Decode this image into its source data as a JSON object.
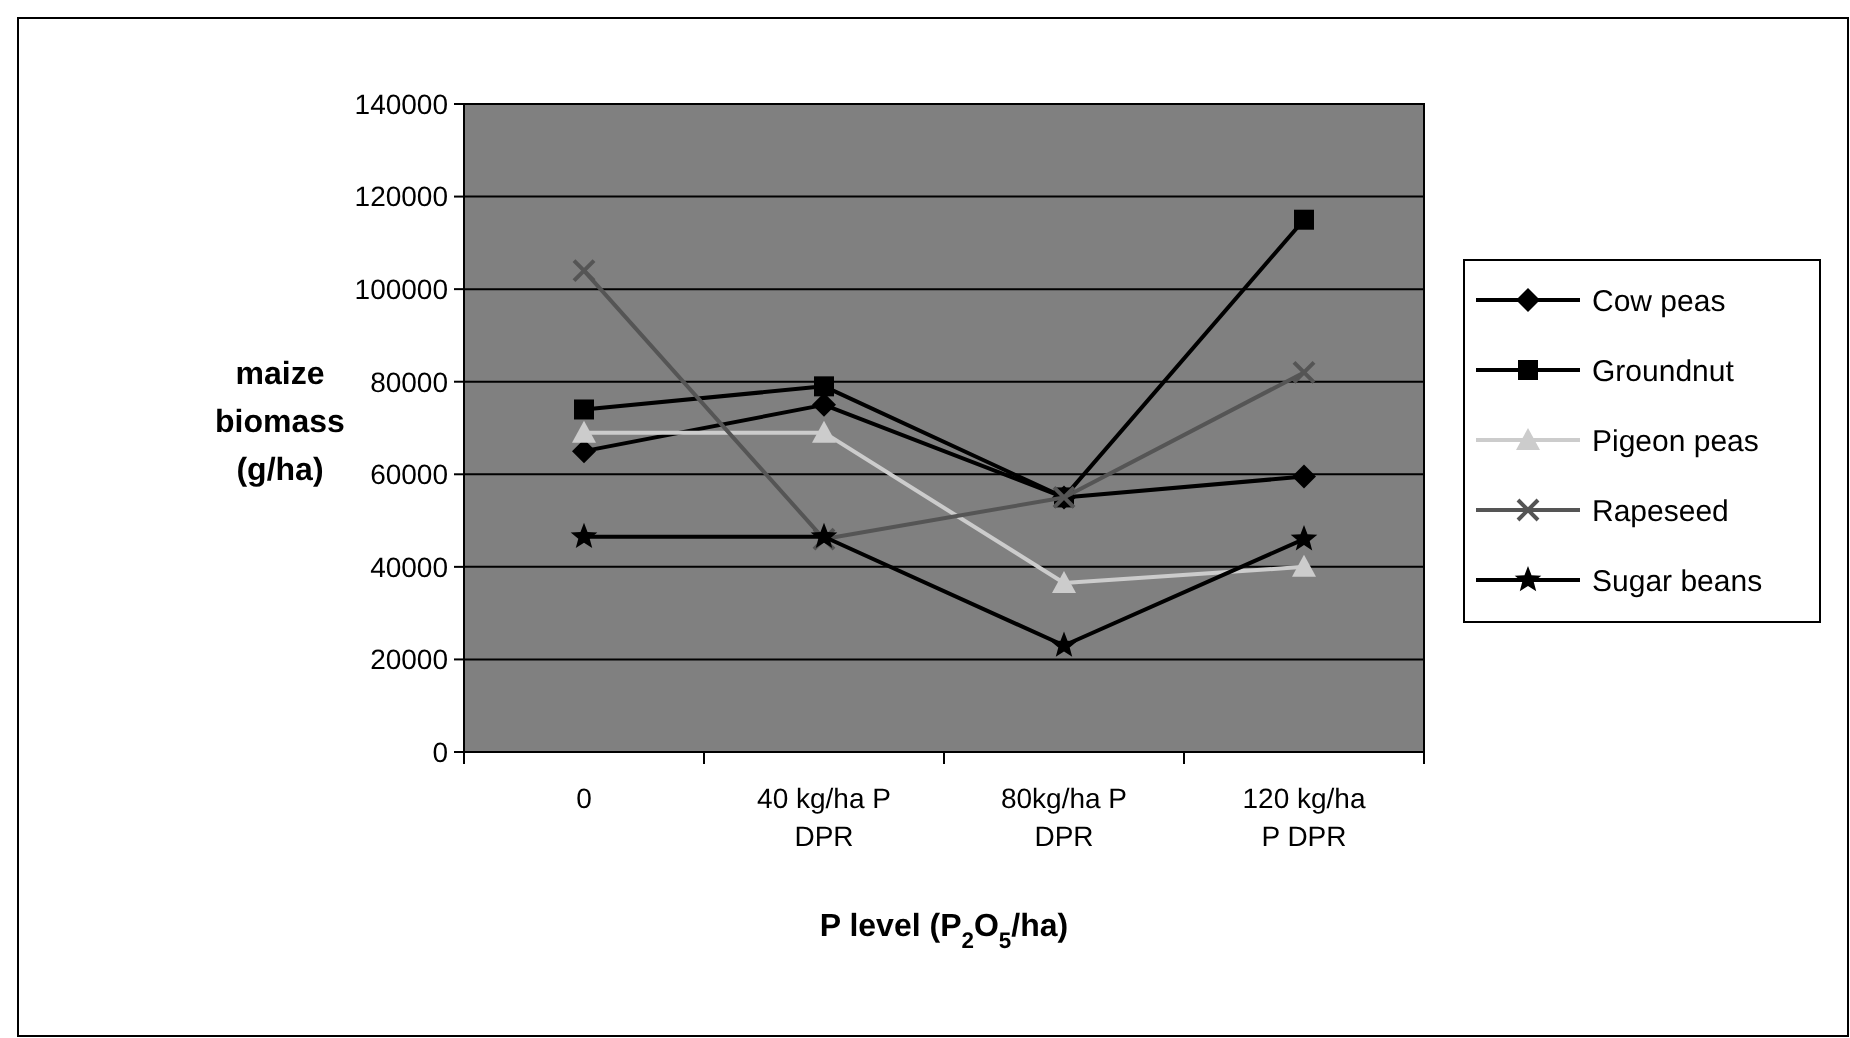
{
  "chart_data": {
    "type": "line",
    "xlabel": "P level (P$_{2}$O$_{5}$/ha)",
    "ylabel": "maize biomass (g/ha)",
    "categories": [
      "0",
      "40 kg/ha P DPR",
      "80kg/ha P DPR",
      "120 kg/ha P DPR"
    ],
    "ylim": [
      0,
      140000
    ],
    "yticks": [
      0,
      20000,
      40000,
      60000,
      80000,
      100000,
      120000,
      140000
    ],
    "grid": "y",
    "legend": "right",
    "series": [
      {
        "name": "Cow peas",
        "color": "#000000",
        "marker": "diamond",
        "values": [
          65000,
          75000,
          55000,
          59500
        ]
      },
      {
        "name": "Groundnut",
        "color": "#000000",
        "marker": "square",
        "values": [
          74000,
          79000,
          55000,
          115000
        ]
      },
      {
        "name": "Pigeon peas",
        "color": "#cccccc",
        "marker": "triangle",
        "values": [
          69000,
          69000,
          36500,
          40000
        ]
      },
      {
        "name": "Rapeseed",
        "color": "#555555",
        "marker": "cross",
        "values": [
          104000,
          46000,
          55000,
          82000
        ]
      },
      {
        "name": "Sugar beans",
        "color": "#000000",
        "marker": "star",
        "values": [
          46500,
          46500,
          23000,
          46000
        ]
      }
    ]
  }
}
